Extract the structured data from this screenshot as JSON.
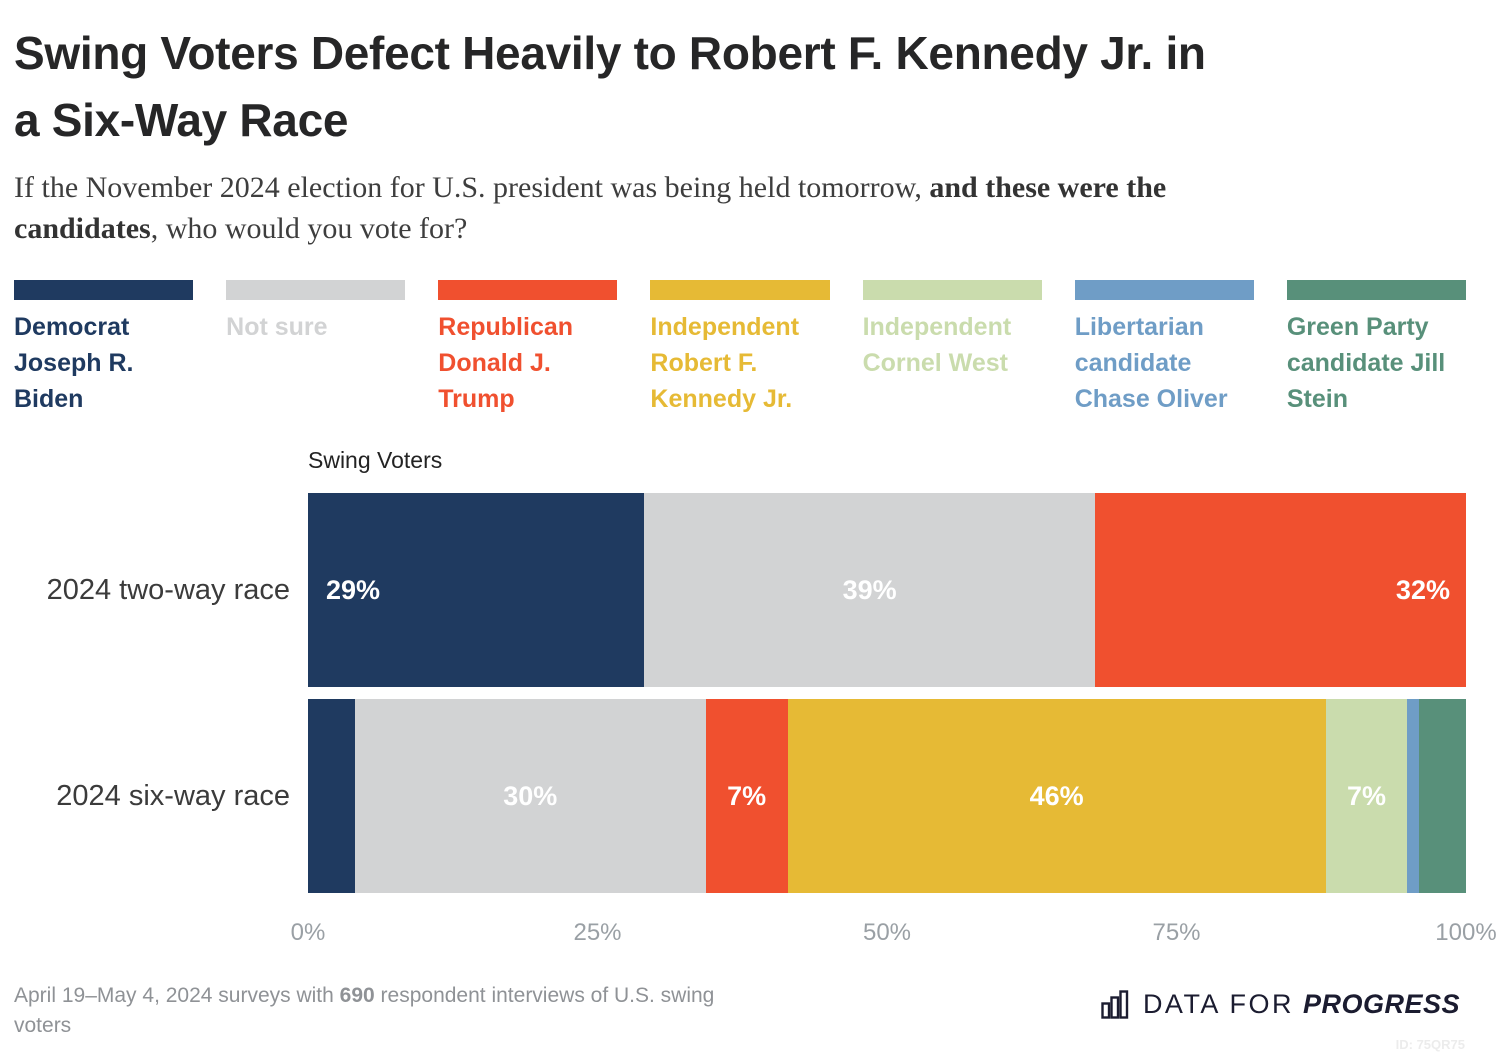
{
  "header": {
    "title_lines": [
      "Swing Voters Defect Heavily to Robert F. Kennedy Jr. in",
      "a Six-Way Race"
    ],
    "subtitle_line1": [
      {
        "text": "If the November 2024 election for U.S. president was being held tomorrow, ",
        "bold": false
      },
      {
        "text": "and these were the",
        "bold": true
      }
    ],
    "subtitle_line2": [
      {
        "text": "candidates",
        "bold": true
      },
      {
        "text": ", who would you vote for?",
        "bold": false
      }
    ]
  },
  "colors": {
    "biden_navy": "#1f3a60",
    "not_sure_gray": "#d2d3d4",
    "trump_red": "#f0502f",
    "kennedy_yellow": "#e6ba35",
    "west_green": "#cadcad",
    "oliver_blue": "#6f9dc6",
    "stein_teal": "#58907a"
  },
  "legend": [
    {
      "label": "Democrat Joseph R. Biden",
      "color": "#1f3a60"
    },
    {
      "label": "Not sure",
      "color": "#d2d3d4"
    },
    {
      "label": "Republican Donald J. Trump",
      "color": "#f0502f"
    },
    {
      "label": "Independent Robert F. Kennedy Jr.",
      "color": "#e6ba35"
    },
    {
      "label": "Independent Cornel West",
      "color": "#cadcad"
    },
    {
      "label": "Libertarian candidate Chase Oliver",
      "color": "#6f9dc6"
    },
    {
      "label": "Green Party candidate Jill Stein",
      "color": "#58907a"
    }
  ],
  "chart_data": {
    "type": "bar",
    "variant": "horizontal-stacked",
    "title": "Swing Voters",
    "legend_position": "top",
    "categories": [
      "2024 two-way race",
      "2024 six-way race"
    ],
    "x_axis": {
      "range": [
        0,
        100
      ],
      "ticks": [
        {
          "label": "0%",
          "value": 0
        },
        {
          "label": "25%",
          "value": 25
        },
        {
          "label": "50%",
          "value": 50
        },
        {
          "label": "75%",
          "value": 75
        },
        {
          "label": "100%",
          "value": 100
        }
      ]
    },
    "rows": [
      {
        "label": "2024 two-way race",
        "segments": [
          {
            "series": "Democrat Joseph R. Biden",
            "value": 29,
            "display": "29%",
            "color": "#1f3a60",
            "label_align": "left"
          },
          {
            "series": "Not sure",
            "value": 39,
            "display": "39%",
            "color": "#d2d3d4",
            "label_align": "center"
          },
          {
            "series": "Republican Donald J. Trump",
            "value": 32,
            "display": "32%",
            "color": "#f0502f",
            "label_align": "right"
          }
        ]
      },
      {
        "label": "2024 six-way race",
        "segments": [
          {
            "series": "Democrat Joseph R. Biden",
            "value": 4,
            "display": null,
            "color": "#1f3a60",
            "label_align": "center"
          },
          {
            "series": "Not sure",
            "value": 30,
            "display": "30%",
            "color": "#d2d3d4",
            "label_align": "center"
          },
          {
            "series": "Republican Donald J. Trump",
            "value": 7,
            "display": "7%",
            "color": "#f0502f",
            "label_align": "center"
          },
          {
            "series": "Independent Robert F. Kennedy Jr.",
            "value": 46,
            "display": "46%",
            "color": "#e6ba35",
            "label_align": "center"
          },
          {
            "series": "Independent Cornel West",
            "value": 7,
            "display": "7%",
            "color": "#cadcad",
            "label_align": "center"
          },
          {
            "series": "Libertarian candidate Chase Oliver",
            "value": 1,
            "display": null,
            "color": "#6f9dc6",
            "label_align": "center"
          },
          {
            "series": "Green Party candidate Jill Stein",
            "value": 4,
            "display": null,
            "color": "#58907a",
            "label_align": "center"
          }
        ]
      }
    ]
  },
  "footer": {
    "note": [
      {
        "text": "April 19–May 4, 2024 surveys with ",
        "bold": false
      },
      {
        "text": "690",
        "bold": true
      },
      {
        "text": " respondent interviews of U.S. swing voters",
        "bold": false
      }
    ],
    "brand_prefix": "DATA FOR",
    "brand_name": "PROGRESS",
    "chart_id": "ID: 75QR75"
  }
}
